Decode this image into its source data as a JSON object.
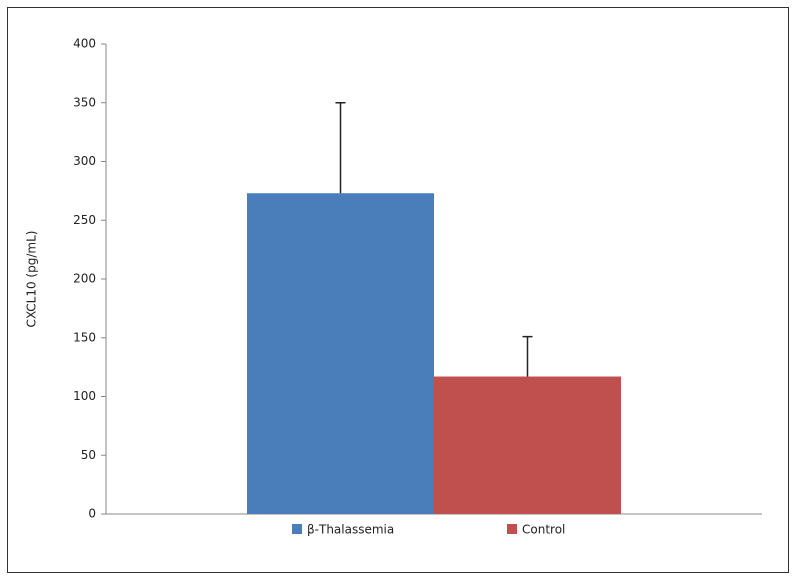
{
  "chart_data": {
    "type": "bar",
    "y_label": "CXCL10 (pg/mL)",
    "categories": [
      null
    ],
    "series": [
      {
        "name": "β-Thalassemia",
        "color": "#4a7ebb",
        "values": [
          273
        ],
        "errors": [
          77
        ]
      },
      {
        "name": "Control",
        "color": "#c0504d",
        "values": [
          117
        ],
        "errors": [
          34
        ]
      }
    ],
    "ylim": [
      0,
      400
    ],
    "yticks": [
      0,
      50,
      100,
      150,
      200,
      250,
      300,
      350,
      400
    ],
    "legend": "bottom",
    "grid": false
  }
}
